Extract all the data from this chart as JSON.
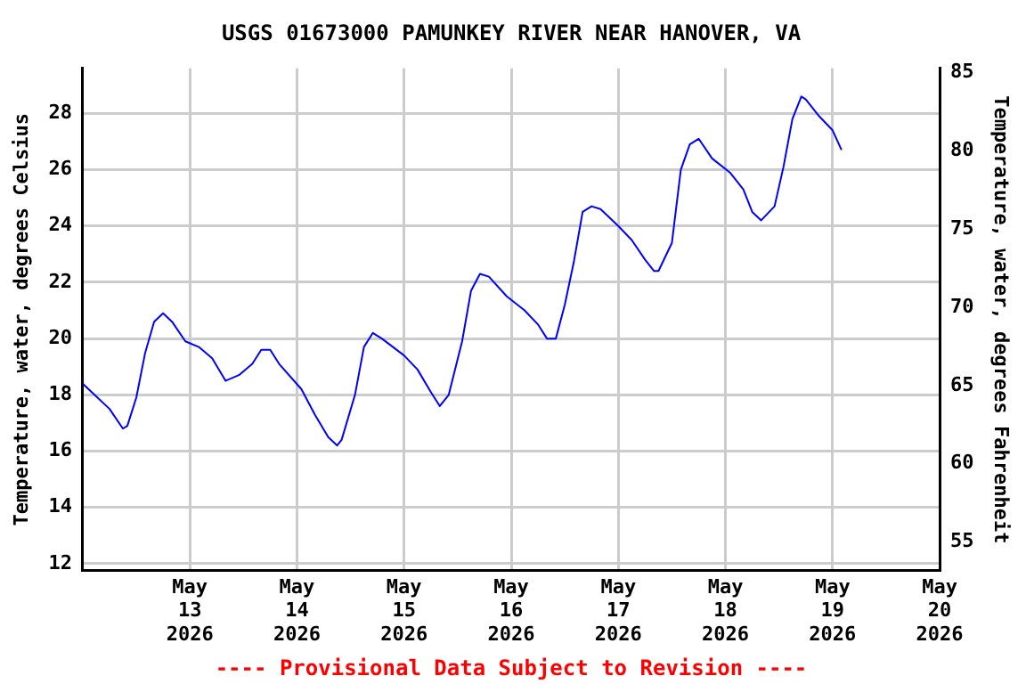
{
  "chart_data": {
    "type": "line",
    "title": "USGS 01673000 PAMUNKEY RIVER NEAR HANOVER, VA",
    "ylabel": "Temperature, water, degrees Celsius",
    "y2label": "Temperature, water, degrees Fahrenheit",
    "annotations": [
      "---- Provisional Data Subject to Revision ----"
    ],
    "x": [
      "2026-05-12T00:00",
      "2026-05-12T02:00",
      "2026-05-12T06:00",
      "2026-05-12T09:00",
      "2026-05-12T10:00",
      "2026-05-12T12:00",
      "2026-05-12T14:00",
      "2026-05-12T16:00",
      "2026-05-12T18:00",
      "2026-05-12T20:00",
      "2026-05-12T23:00",
      "2026-05-13T02:00",
      "2026-05-13T05:00",
      "2026-05-13T08:00",
      "2026-05-13T11:00",
      "2026-05-13T14:00",
      "2026-05-13T16:00",
      "2026-05-13T18:00",
      "2026-05-13T20:00",
      "2026-05-14T01:00",
      "2026-05-14T04:00",
      "2026-05-14T07:00",
      "2026-05-14T09:00",
      "2026-05-14T10:00",
      "2026-05-14T13:00",
      "2026-05-14T15:00",
      "2026-05-14T17:00",
      "2026-05-14T19:00",
      "2026-05-15T00:00",
      "2026-05-15T03:00",
      "2026-05-15T06:00",
      "2026-05-15T08:00",
      "2026-05-15T10:00",
      "2026-05-15T13:00",
      "2026-05-15T15:00",
      "2026-05-15T17:00",
      "2026-05-15T19:00",
      "2026-05-15T23:00",
      "2026-05-16T03:00",
      "2026-05-16T06:00",
      "2026-05-16T08:00",
      "2026-05-16T10:00",
      "2026-05-16T12:00",
      "2026-05-16T14:00",
      "2026-05-16T16:00",
      "2026-05-16T18:00",
      "2026-05-16T20:00",
      "2026-05-17T00:00",
      "2026-05-17T03:00",
      "2026-05-17T06:00",
      "2026-05-17T08:00",
      "2026-05-17T09:00",
      "2026-05-17T12:00",
      "2026-05-17T14:00",
      "2026-05-17T16:00",
      "2026-05-17T18:00",
      "2026-05-17T21:00",
      "2026-05-18T01:00",
      "2026-05-18T04:00",
      "2026-05-18T06:00",
      "2026-05-18T08:00",
      "2026-05-18T11:00",
      "2026-05-18T13:00",
      "2026-05-18T15:00",
      "2026-05-18T17:00",
      "2026-05-18T18:00",
      "2026-05-18T21:00",
      "2026-05-19T00:00",
      "2026-05-19T02:00"
    ],
    "series": [
      {
        "color": "#0000ff",
        "values": [
          18.4,
          18.1,
          17.5,
          16.8,
          16.9,
          17.9,
          19.5,
          20.6,
          20.9,
          20.6,
          19.9,
          19.7,
          19.3,
          18.5,
          18.7,
          19.1,
          19.6,
          19.6,
          19.1,
          18.2,
          17.3,
          16.5,
          16.2,
          16.4,
          18.0,
          19.7,
          20.2,
          20.0,
          19.4,
          18.9,
          18.1,
          17.6,
          18.0,
          19.9,
          21.7,
          22.3,
          22.2,
          21.5,
          21.0,
          20.5,
          20.0,
          20.0,
          21.2,
          22.7,
          24.5,
          24.7,
          24.6,
          24.0,
          23.5,
          22.8,
          22.4,
          22.4,
          23.4,
          26.0,
          26.9,
          27.1,
          26.4,
          25.9,
          25.3,
          24.5,
          24.2,
          24.7,
          26.1,
          27.8,
          28.6,
          28.5,
          27.9,
          27.4,
          26.7
        ]
      }
    ],
    "xlim": [
      "2026-05-12",
      "2026-05-20"
    ],
    "xticks": [
      {
        "value": "2026-05-13",
        "label": "May 13 2026"
      },
      {
        "value": "2026-05-14",
        "label": "May 14 2026"
      },
      {
        "value": "2026-05-15",
        "label": "May 15 2026"
      },
      {
        "value": "2026-05-16",
        "label": "May 16 2026"
      },
      {
        "value": "2026-05-17",
        "label": "May 17 2026"
      },
      {
        "value": "2026-05-18",
        "label": "May 18 2026"
      },
      {
        "value": "2026-05-19",
        "label": "May 19 2026"
      },
      {
        "value": "2026-05-20",
        "label": "May 20 2026"
      }
    ],
    "ylim": [
      11.75,
      29.6
    ],
    "yticks": [
      12,
      14,
      16,
      18,
      20,
      22,
      24,
      26,
      28
    ],
    "y2lim": [
      53.15,
      85.28
    ],
    "y2ticks": [
      55,
      60,
      65,
      70,
      75,
      80,
      85
    ],
    "grid": true,
    "legend": false,
    "marker": "none",
    "line_style": "solid"
  }
}
